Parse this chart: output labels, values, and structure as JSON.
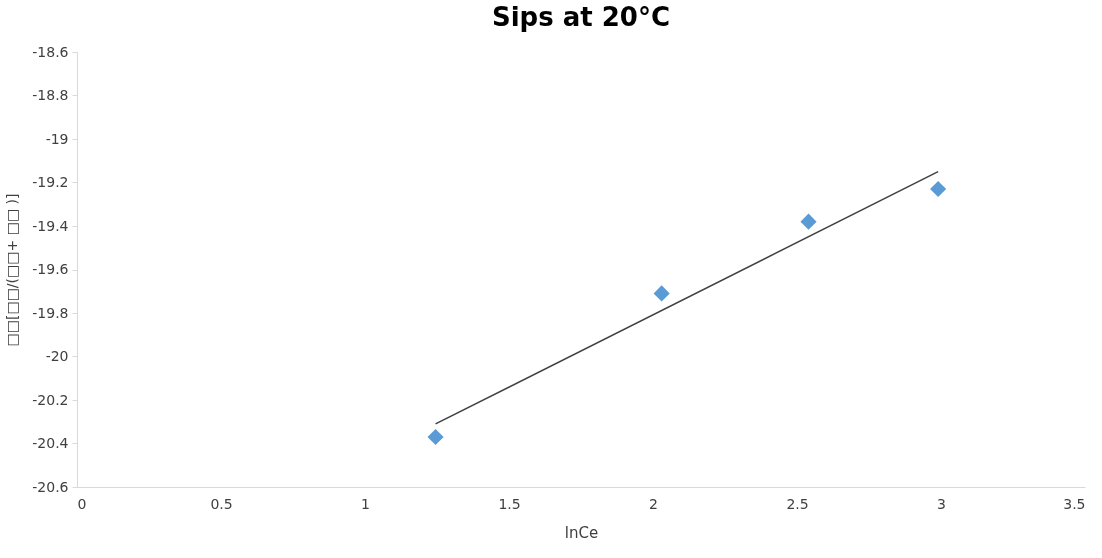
{
  "chart_data": {
    "type": "scatter",
    "title": "Sips at 20°C",
    "xlabel": "lnCe",
    "ylabel": "□□[□□/(□□+ □□ )]",
    "series": [
      {
        "color": "#5b9bd5",
        "marker": "diamond",
        "x": [
          1.245,
          2.03,
          2.54,
          2.99
        ],
        "values": [
          -20.37,
          -19.71,
          -19.38,
          -19.23
        ]
      },
      {
        "type": "line",
        "color": "#404040",
        "marker": "none",
        "x": [
          1.245,
          2.99
        ],
        "values": [
          -20.31,
          -19.15
        ]
      }
    ],
    "xlim": [
      0,
      3.5
    ],
    "xticks": [
      0,
      0.5,
      1,
      1.5,
      2,
      2.5,
      3,
      3.5
    ],
    "ylim": [
      -20.6,
      -18.6
    ],
    "yticks": [
      -20.6,
      -20.4,
      -20.2,
      -20,
      -19.8,
      -19.6,
      -19.4,
      -19.2,
      -19,
      -18.8,
      -18.6
    ],
    "grid": false
  }
}
